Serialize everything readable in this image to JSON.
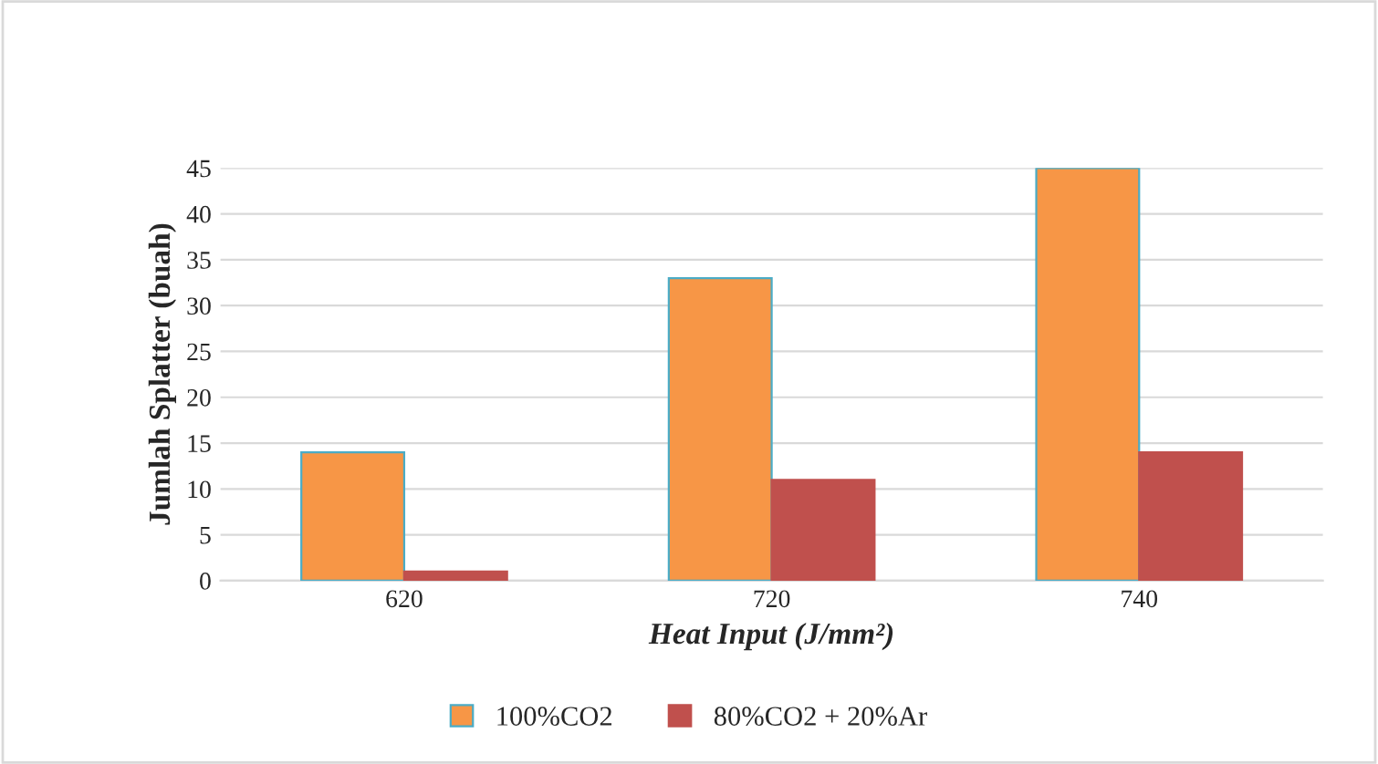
{
  "chart_data": {
    "type": "bar",
    "categories": [
      "620",
      "720",
      "740"
    ],
    "series": [
      {
        "name": "100%CO2",
        "color": "#f79646",
        "values": [
          14,
          33,
          45
        ]
      },
      {
        "name": "80%CO2 + 20%Ar",
        "color": "#c0504d",
        "values": [
          1,
          11,
          14
        ]
      }
    ],
    "xlabel": "Heat Input (J/mm²)",
    "ylabel": "Jumlah Splatter (buah)",
    "ylim": [
      0,
      45
    ],
    "yticks": [
      0,
      5,
      10,
      15,
      20,
      25,
      30,
      35,
      40,
      45
    ],
    "grid": "y",
    "legend": "bottom"
  }
}
